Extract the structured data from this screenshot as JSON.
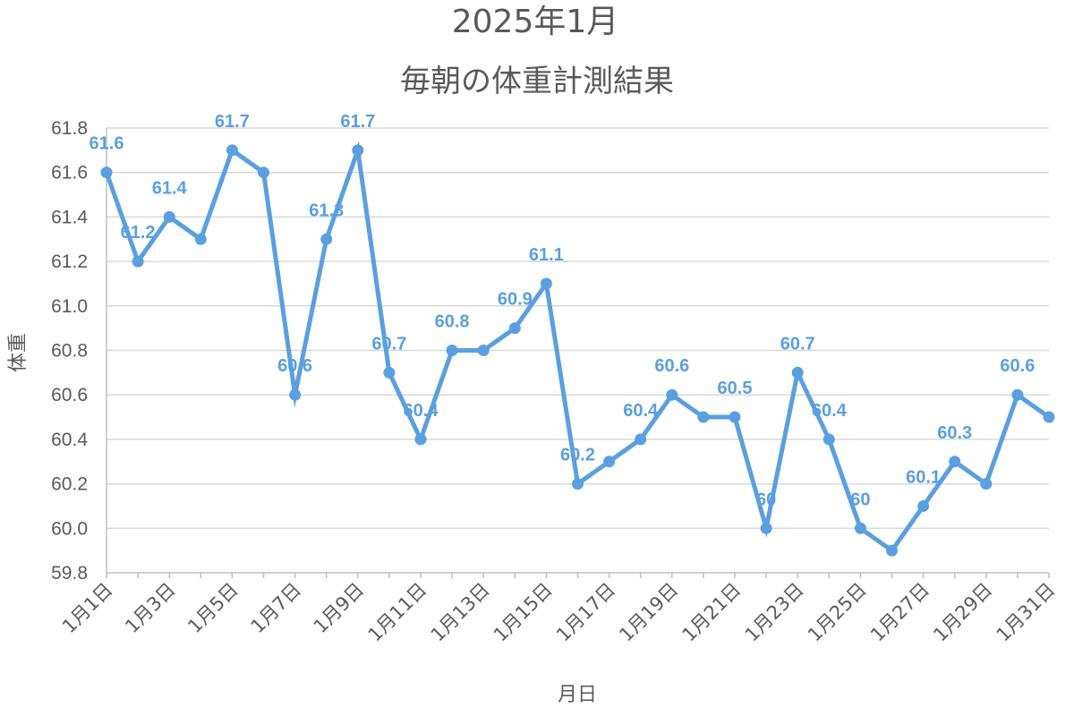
{
  "chart_data": {
    "type": "line",
    "title": "2025年1月",
    "subtitle": "毎朝の体重計測結果",
    "xlabel": "月日",
    "ylabel": "体重",
    "ylim": [
      59.8,
      61.8
    ],
    "ytick_step": 0.2,
    "yticks": [
      "59.8",
      "60.0",
      "60.2",
      "60.4",
      "60.6",
      "60.8",
      "61.0",
      "61.2",
      "61.4",
      "61.6",
      "61.8"
    ],
    "grid": true,
    "color": "#5a9fe0",
    "categories": [
      "1月1日",
      "1月2日",
      "1月3日",
      "1月4日",
      "1月5日",
      "1月6日",
      "1月7日",
      "1月8日",
      "1月9日",
      "1月10日",
      "1月11日",
      "1月12日",
      "1月13日",
      "1月14日",
      "1月15日",
      "1月16日",
      "1月17日",
      "1月18日",
      "1月19日",
      "1月20日",
      "1月21日",
      "1月22日",
      "1月23日",
      "1月24日",
      "1月25日",
      "1月26日",
      "1月27日",
      "1月28日",
      "1月29日",
      "1月30日",
      "1月31日"
    ],
    "shown_tick_labels": [
      "1月1日",
      "1月3日",
      "1月5日",
      "1月7日",
      "1月9日",
      "1月11日",
      "1月13日",
      "1月15日",
      "1月17日",
      "1月19日",
      "1月21日",
      "1月23日",
      "1月25日",
      "1月27日",
      "1月29日",
      "1月31日"
    ],
    "series": [
      {
        "values": [
          61.6,
          61.2,
          61.4,
          61.3,
          61.7,
          61.6,
          60.6,
          61.3,
          61.7,
          60.7,
          60.4,
          60.8,
          60.8,
          60.9,
          61.1,
          60.2,
          60.3,
          60.4,
          60.6,
          60.5,
          60.5,
          60.0,
          60.7,
          60.4,
          60.0,
          59.9,
          60.1,
          60.3,
          60.2,
          60.6,
          60.5
        ]
      }
    ],
    "data_labels": [
      {
        "index": 0,
        "text": "61.6"
      },
      {
        "index": 1,
        "text": "61.2"
      },
      {
        "index": 2,
        "text": "61.4"
      },
      {
        "index": 4,
        "text": "61.7"
      },
      {
        "index": 6,
        "text": "60.6"
      },
      {
        "index": 7,
        "text": "61.3"
      },
      {
        "index": 8,
        "text": "61.7"
      },
      {
        "index": 9,
        "text": "60.7"
      },
      {
        "index": 10,
        "text": "60.4"
      },
      {
        "index": 11,
        "text": "60.8"
      },
      {
        "index": 13,
        "text": "60.9"
      },
      {
        "index": 14,
        "text": "61.1"
      },
      {
        "index": 15,
        "text": "60.2"
      },
      {
        "index": 17,
        "text": "60.4"
      },
      {
        "index": 18,
        "text": "60.6"
      },
      {
        "index": 20,
        "text": "60.5"
      },
      {
        "index": 21,
        "text": "60"
      },
      {
        "index": 22,
        "text": "60.7"
      },
      {
        "index": 23,
        "text": "60.4"
      },
      {
        "index": 24,
        "text": "60"
      },
      {
        "index": 26,
        "text": "60.1"
      },
      {
        "index": 27,
        "text": "60.3"
      },
      {
        "index": 29,
        "text": "60.6"
      }
    ]
  }
}
